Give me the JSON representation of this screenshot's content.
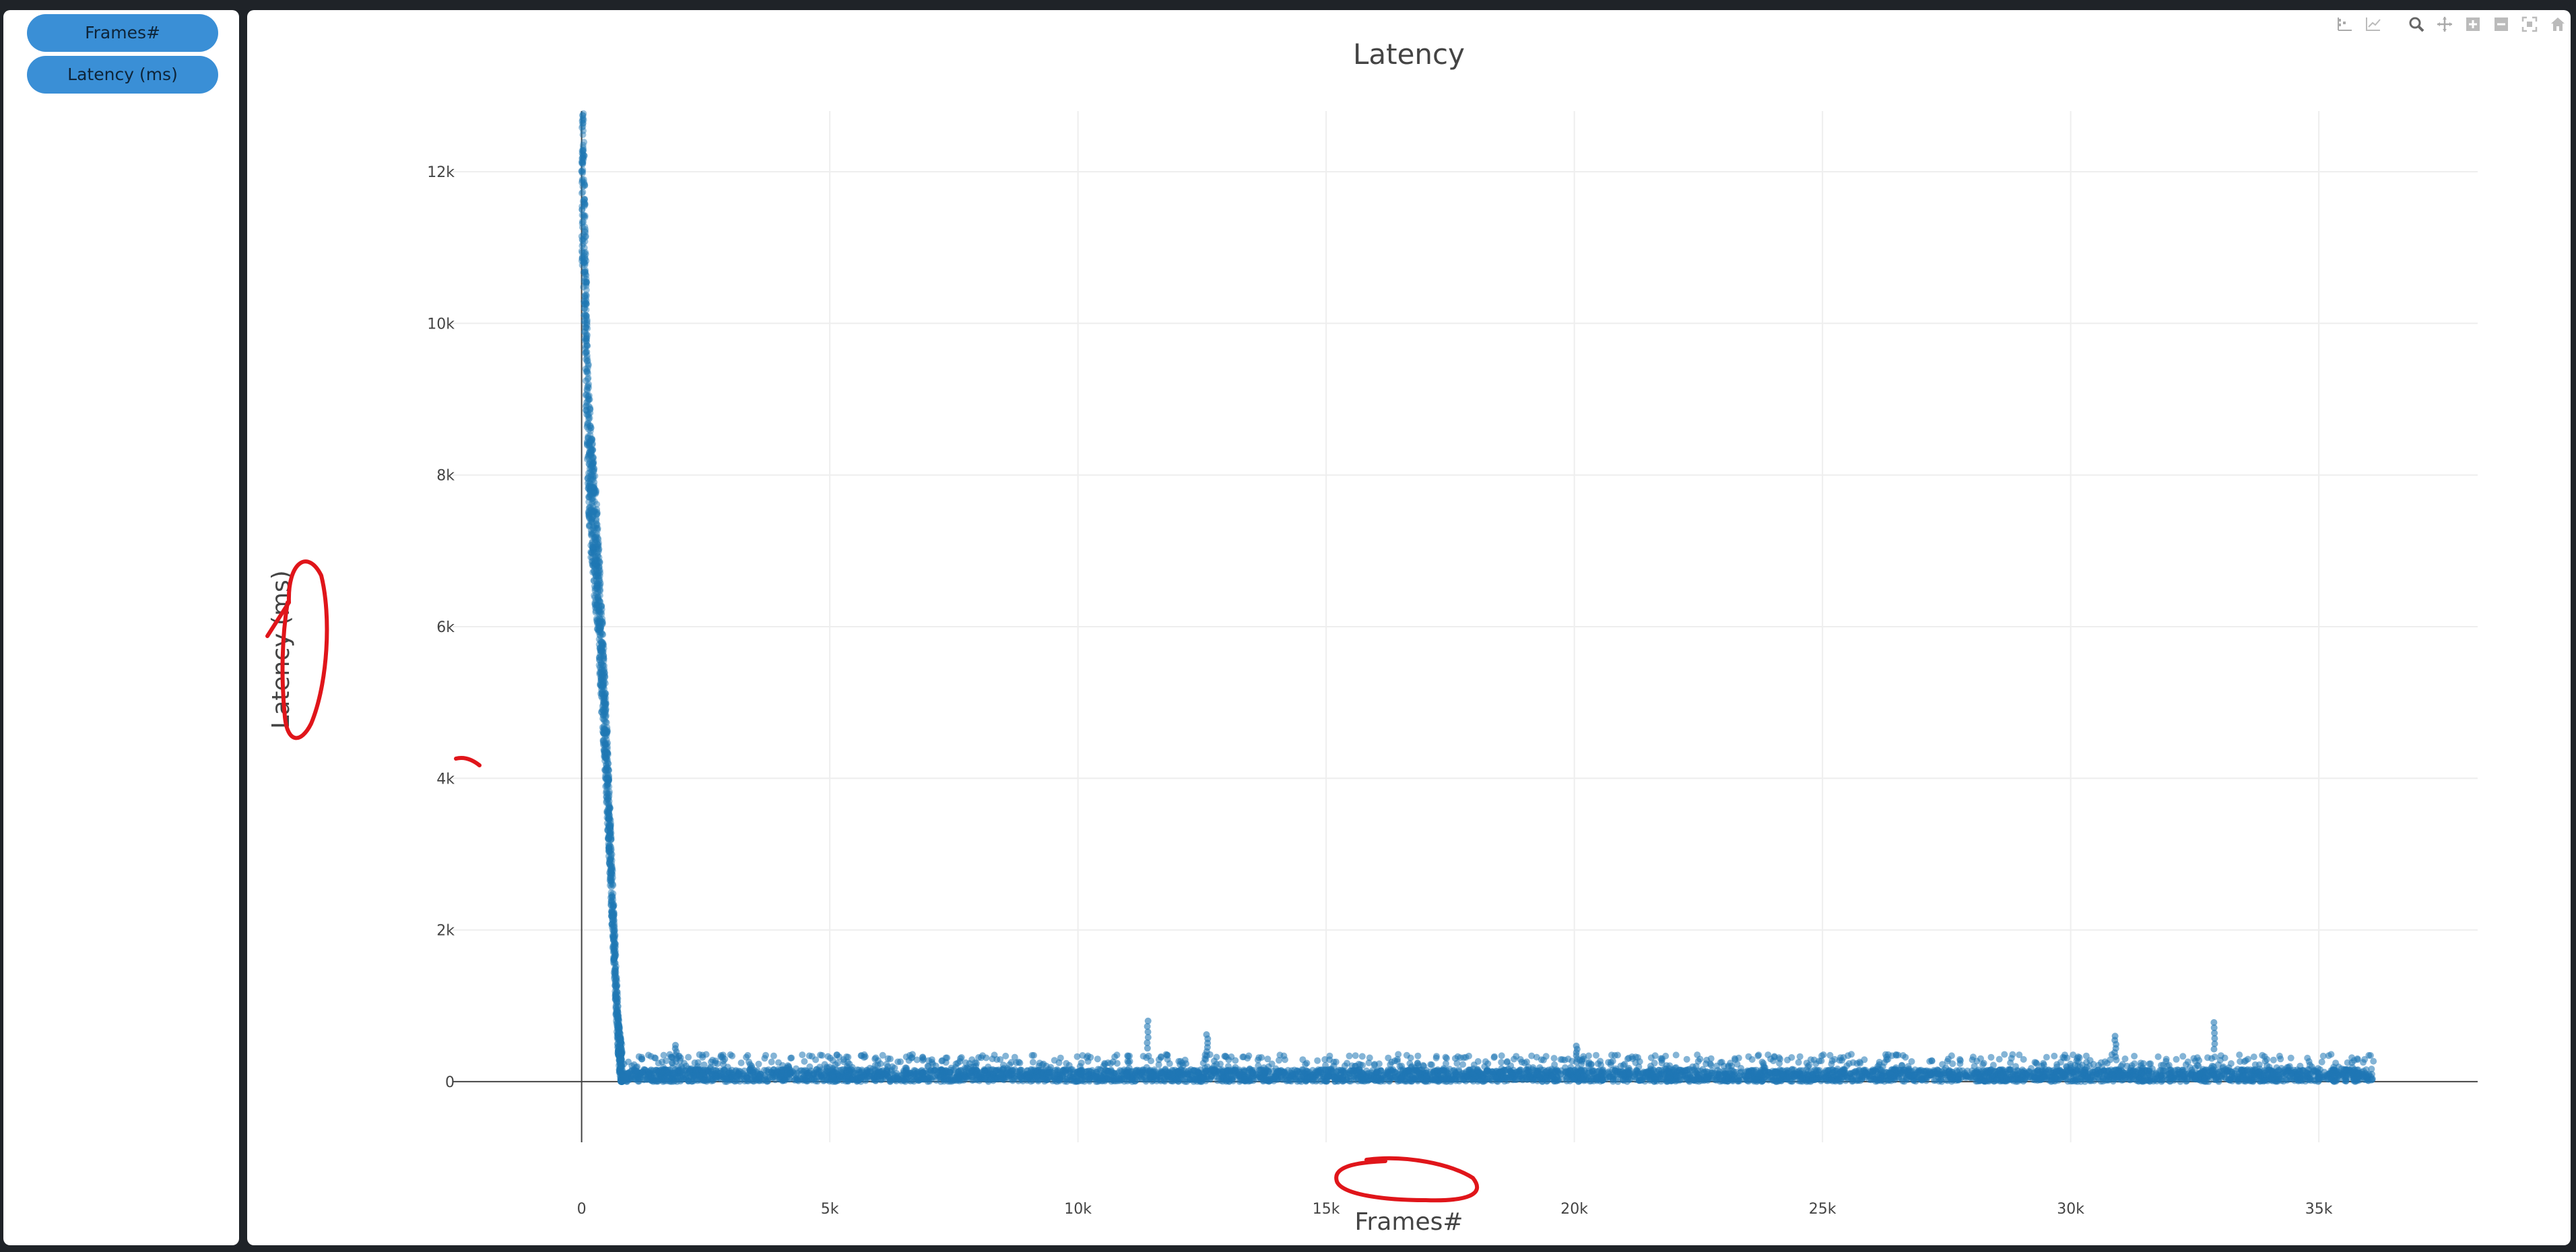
{
  "sidebar": {
    "buttons": [
      {
        "label": "Frames#"
      },
      {
        "label": "Latency (ms)"
      }
    ]
  },
  "toolbar": {
    "icons": [
      "compare-data-icon",
      "trend-line-icon",
      "zoom-icon",
      "pan-icon",
      "zoom-in-icon",
      "zoom-out-icon",
      "autoscale-icon",
      "reset-axes-icon"
    ]
  },
  "colors": {
    "marker": "#1f77b4",
    "annotation": "#e0151a",
    "grid": "#eeeeee",
    "button": "#3a8fd6"
  },
  "chart_data": {
    "type": "scatter",
    "title": "Latency",
    "xlabel": "Frames#",
    "ylabel": "Latency (ms)",
    "xlim": [
      -2600,
      38200
    ],
    "ylim": [
      -800,
      12800
    ],
    "x_ticks": [
      0,
      5000,
      10000,
      15000,
      20000,
      25000,
      30000,
      35000
    ],
    "x_tick_labels": [
      "0",
      "5k",
      "10k",
      "15k",
      "20k",
      "25k",
      "30k",
      "35k"
    ],
    "y_ticks": [
      0,
      2000,
      4000,
      6000,
      8000,
      10000,
      12000
    ],
    "y_tick_labels": [
      "0",
      "2k",
      "4k",
      "6k",
      "8k",
      "10k",
      "12k"
    ],
    "series": [
      {
        "name": "Latency (ms)",
        "description_points": {
          "startup_spike_x": [
            0,
            40,
            60,
            80,
            100,
            130,
            160,
            200,
            250,
            300,
            350,
            400,
            450,
            500,
            550,
            600,
            650,
            700,
            750,
            800
          ],
          "startup_spike_y": [
            12100,
            11500,
            11000,
            10200,
            9600,
            8600,
            8100,
            7700,
            7300,
            6900,
            6300,
            5600,
            5000,
            4300,
            3500,
            2700,
            1900,
            1100,
            500,
            200
          ],
          "steady_state_range_x": [
            800,
            36100
          ],
          "steady_state_typical_y": [
            0,
            300
          ],
          "notable_outliers_x": [
            1900,
            11400,
            12600,
            20050,
            30900,
            32900
          ],
          "notable_outliers_y": [
            480,
            800,
            620,
            470,
            600,
            780
          ]
        }
      }
    ]
  }
}
